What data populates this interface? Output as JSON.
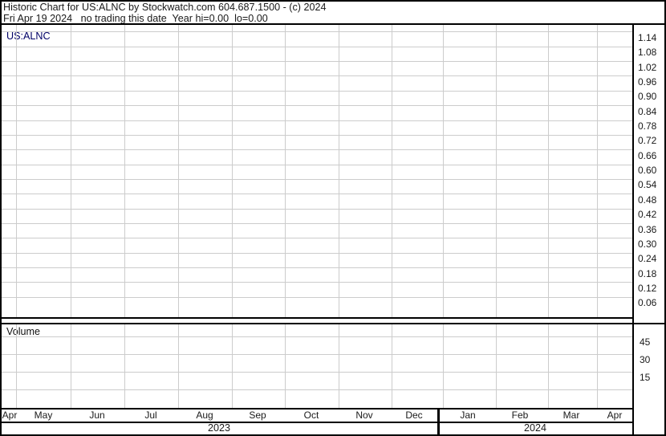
{
  "header": {
    "line1": "Historic Chart for US:ALNC by Stockwatch.com 604.687.1500 - (c) 2024",
    "line2": "Fri Apr 19 2024   no trading this date  Year hi=0.00  lo=0.00"
  },
  "price_panel": {
    "symbol_label": "US:ALNC"
  },
  "volume_panel": {
    "label": "Volume"
  },
  "colors": {
    "background": "#ffffff",
    "border": "#000000",
    "gridline": "#cccccc",
    "text": "#1a1a1a",
    "symbol_text": "#000066"
  },
  "chart_data": {
    "type": "line",
    "title": "Historic Chart for US:ALNC by Stockwatch.com 604.687.1500 - (c) 2024",
    "subtitle": "Fri Apr 19 2024   no trading this date  Year hi=0.00  lo=0.00",
    "note": "Chart body is empty: no trading this date, year hi=0.00 lo=0.00, so no price or volume data points are drawn",
    "series": [
      {
        "name": "US:ALNC price",
        "values": []
      },
      {
        "name": "Volume",
        "values": []
      }
    ],
    "price_axis": {
      "side": "right",
      "tick_labels": [
        "1.14",
        "1.08",
        "1.02",
        "0.96",
        "0.90",
        "0.84",
        "0.78",
        "0.72",
        "0.66",
        "0.60",
        "0.54",
        "0.48",
        "0.42",
        "0.36",
        "0.30",
        "0.24",
        "0.18",
        "0.12",
        "0.06"
      ],
      "tick_step": 0.06,
      "grid": true
    },
    "volume_axis": {
      "side": "right",
      "tick_labels": [
        "45",
        "30",
        "15"
      ],
      "tick_step": 15,
      "baseline_gridline": 0,
      "grid": true
    },
    "x_axis": {
      "month_labels": [
        "Apr",
        "May",
        "Jun",
        "Jul",
        "Aug",
        "Sep",
        "Oct",
        "Nov",
        "Dec",
        "Jan",
        "Feb",
        "Mar",
        "Apr"
      ],
      "year_labels": [
        "2023",
        "2024"
      ],
      "grid": true
    },
    "legend": null
  }
}
